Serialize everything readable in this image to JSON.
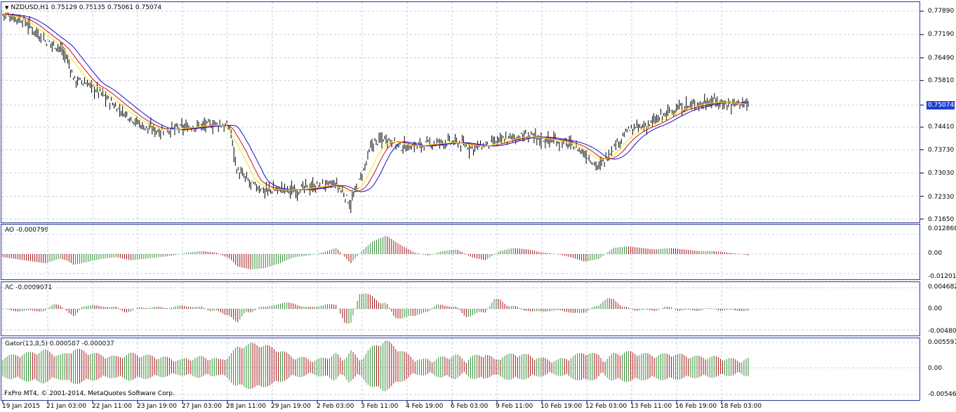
{
  "symbol": "NZDUSD,H1",
  "ohlc": "0.75129 0.75135 0.75061 0.75074",
  "current_price": "0.75074",
  "price_scale": [
    "0.77890",
    "0.77190",
    "0.76490",
    "0.75810",
    "0.75074",
    "0.74410",
    "0.73730",
    "0.73030",
    "0.72330",
    "0.71650"
  ],
  "ao": {
    "label": "AO -0.000799",
    "scale": [
      "0.012868",
      "0.00",
      "-0.012013"
    ]
  },
  "ac": {
    "label": "AC -0.0009071",
    "scale": [
      "0.004682",
      "0.00",
      "-0.004805"
    ]
  },
  "gator": {
    "label": "Gator(13,8,5) 0.000587 -0.000037",
    "scale": [
      "0.005597",
      "0.00",
      "-0.005469"
    ]
  },
  "copyright": "FxPro MT4, © 2001-2014, MetaQuotes Software Corp.",
  "time_axis": [
    "19 Jan 2015",
    "21 Jan 03:00",
    "22 Jan 11:00",
    "23 Jan 19:00",
    "27 Jan 03:00",
    "28 Jan 11:00",
    "29 Jan 19:00",
    "2 Feb 03:00",
    "3 Feb 11:00",
    "4 Feb 19:00",
    "6 Feb 03:00",
    "9 Feb 11:00",
    "10 Feb 19:00",
    "12 Feb 03:00",
    "13 Feb 11:00",
    "16 Feb 19:00",
    "18 Feb 03:00"
  ],
  "colors": {
    "frame": "#2a3a9a",
    "grid": "#c8cce0",
    "bar": "#000000",
    "jaw": "#1010d0",
    "teeth": "#d01010",
    "lips": "#e8e820",
    "up": "#2e8b2e",
    "down": "#a01010",
    "price_tag": "#1f3fd0"
  },
  "chart_data": {
    "type": "line",
    "title": "NZDUSD,H1",
    "y_range": [
      0.7165,
      0.7789
    ],
    "close_path": [
      [
        0,
        0.778
      ],
      [
        3,
        0.776
      ],
      [
        6,
        0.77
      ],
      [
        8,
        0.768
      ],
      [
        9,
        0.765
      ],
      [
        10,
        0.7585
      ],
      [
        12,
        0.757
      ],
      [
        14,
        0.754
      ],
      [
        16,
        0.75
      ],
      [
        18,
        0.747
      ],
      [
        20,
        0.744
      ],
      [
        22,
        0.743
      ],
      [
        24,
        0.7435
      ],
      [
        26,
        0.744
      ],
      [
        28,
        0.7445
      ],
      [
        30,
        0.745
      ],
      [
        32,
        0.744
      ],
      [
        33,
        0.731
      ],
      [
        35,
        0.727
      ],
      [
        37,
        0.725
      ],
      [
        39,
        0.7255
      ],
      [
        41,
        0.725
      ],
      [
        43,
        0.726
      ],
      [
        45,
        0.7265
      ],
      [
        47,
        0.727
      ],
      [
        49,
        0.721
      ],
      [
        51,
        0.732
      ],
      [
        52,
        0.739
      ],
      [
        54,
        0.741
      ],
      [
        56,
        0.738
      ],
      [
        58,
        0.7385
      ],
      [
        60,
        0.739
      ],
      [
        62,
        0.7395
      ],
      [
        64,
        0.7395
      ],
      [
        66,
        0.738
      ],
      [
        68,
        0.7385
      ],
      [
        70,
        0.74
      ],
      [
        72,
        0.741
      ],
      [
        74,
        0.7415
      ],
      [
        76,
        0.7405
      ],
      [
        78,
        0.74
      ],
      [
        80,
        0.739
      ],
      [
        82,
        0.736
      ],
      [
        84,
        0.732
      ],
      [
        86,
        0.738
      ],
      [
        88,
        0.743
      ],
      [
        90,
        0.744
      ],
      [
        92,
        0.746
      ],
      [
        94,
        0.749
      ],
      [
        96,
        0.75
      ],
      [
        98,
        0.751
      ],
      [
        100,
        0.752
      ],
      [
        102,
        0.751
      ],
      [
        104,
        0.7515
      ],
      [
        105,
        0.7507
      ]
    ],
    "ao_hist": [
      [
        0,
        -0.002
      ],
      [
        3,
        -0.004
      ],
      [
        6,
        -0.006
      ],
      [
        8,
        -0.003
      ],
      [
        9,
        -0.004
      ],
      [
        10,
        -0.007
      ],
      [
        12,
        -0.005
      ],
      [
        14,
        -0.003
      ],
      [
        16,
        -0.002
      ],
      [
        18,
        -0.004
      ],
      [
        20,
        -0.003
      ],
      [
        22,
        -0.002
      ],
      [
        24,
        -0.001
      ],
      [
        26,
        0.001
      ],
      [
        28,
        0.002
      ],
      [
        30,
        0.001
      ],
      [
        32,
        -0.003
      ],
      [
        33,
        -0.008
      ],
      [
        35,
        -0.01
      ],
      [
        37,
        -0.009
      ],
      [
        39,
        -0.006
      ],
      [
        41,
        -0.002
      ],
      [
        43,
        -0.001
      ],
      [
        45,
        0.001
      ],
      [
        47,
        0.004
      ],
      [
        49,
        -0.006
      ],
      [
        51,
        0.004
      ],
      [
        52,
        0.008
      ],
      [
        54,
        0.012
      ],
      [
        56,
        0.006
      ],
      [
        58,
        0.001
      ],
      [
        60,
        -0.001
      ],
      [
        62,
        0.002
      ],
      [
        64,
        0.003
      ],
      [
        66,
        -0.002
      ],
      [
        68,
        -0.004
      ],
      [
        70,
        0.002
      ],
      [
        72,
        0.004
      ],
      [
        74,
        0.003
      ],
      [
        76,
        0.001
      ],
      [
        78,
        0.0
      ],
      [
        80,
        -0.002
      ],
      [
        82,
        -0.005
      ],
      [
        84,
        -0.003
      ],
      [
        86,
        0.004
      ],
      [
        88,
        0.005
      ],
      [
        90,
        0.004
      ],
      [
        92,
        0.003
      ],
      [
        94,
        0.004
      ],
      [
        96,
        0.003
      ],
      [
        98,
        0.002
      ],
      [
        100,
        0.002
      ],
      [
        102,
        0.001
      ],
      [
        104,
        0.0
      ],
      [
        105,
        -0.0008
      ]
    ]
  }
}
